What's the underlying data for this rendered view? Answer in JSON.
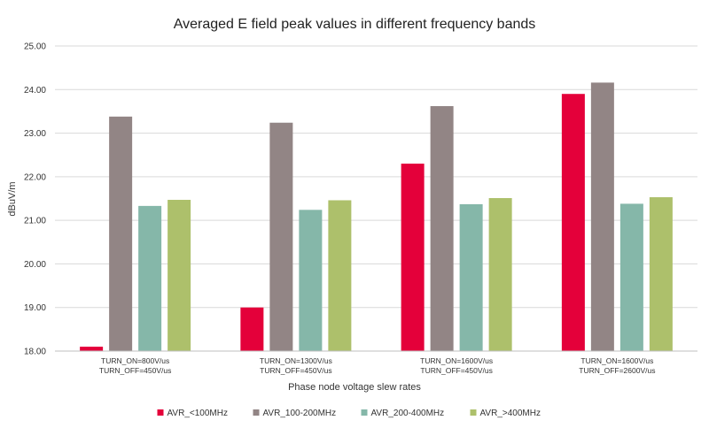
{
  "chart_data": {
    "type": "bar",
    "title": "Averaged E field peak values in different frequency bands",
    "xlabel": "Phase node voltage slew rates",
    "ylabel": "dBuV/m",
    "ylim": [
      18.0,
      25.0
    ],
    "yticks": [
      "18.00",
      "19.00",
      "20.00",
      "21.00",
      "22.00",
      "23.00",
      "24.00",
      "25.00"
    ],
    "grid": true,
    "legend_position": "bottom",
    "categories": [
      [
        "TURN_ON=800V/us",
        "TURN_OFF=450V/us"
      ],
      [
        "TURN_ON=1300V/us",
        "TURN_OFF=450V/us"
      ],
      [
        "TURN_ON=1600V/us",
        "TURN_OFF=450V/us"
      ],
      [
        "TURN_ON=1600V/us",
        "TURN_OFF=2600V/us"
      ]
    ],
    "series": [
      {
        "name": "AVR_<100MHz",
        "color": "#e4003a",
        "values": [
          18.1,
          19.0,
          22.3,
          23.9
        ]
      },
      {
        "name": "AVR_100-200MHz",
        "color": "#928585",
        "values": [
          23.38,
          23.24,
          23.62,
          24.16
        ]
      },
      {
        "name": "AVR_200-400MHz",
        "color": "#85b7a9",
        "values": [
          21.33,
          21.24,
          21.37,
          21.38
        ]
      },
      {
        "name": "AVR_>400MHz",
        "color": "#adc06b",
        "values": [
          21.47,
          21.46,
          21.51,
          21.53
        ]
      }
    ]
  }
}
